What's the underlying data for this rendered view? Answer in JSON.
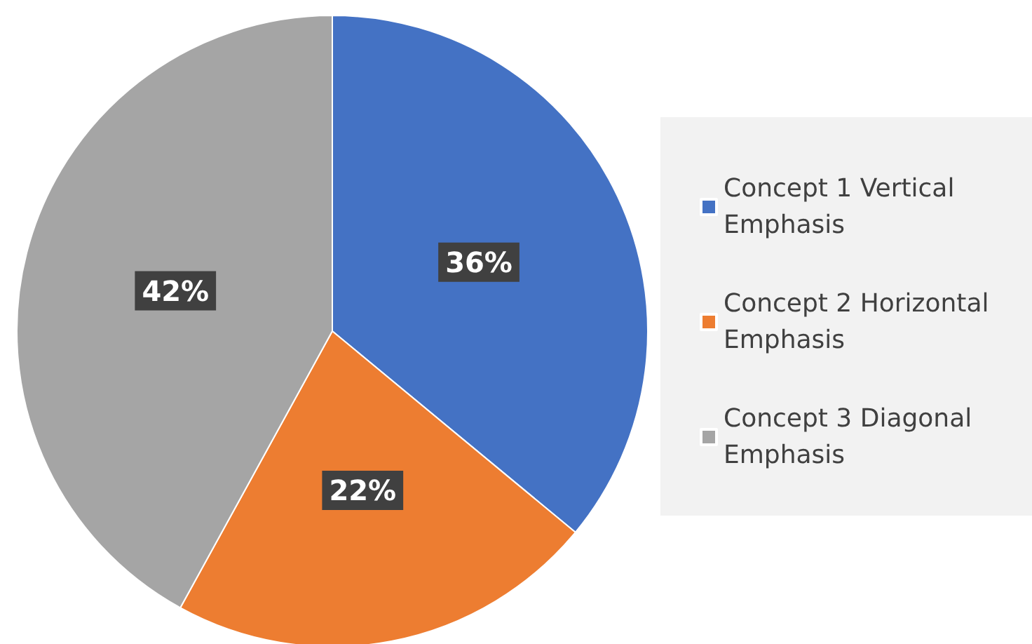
{
  "chart_data": {
    "type": "pie",
    "categories": [
      "Concept 1 Vertical Emphasis",
      "Concept 2 Horizontal Emphasis",
      "Concept 3 Diagonal Emphasis"
    ],
    "values": [
      36,
      22,
      42
    ],
    "colors": [
      "#4472c4",
      "#ed7d31",
      "#a5a5a5"
    ],
    "value_labels": [
      "36%",
      "22%",
      "42%"
    ],
    "legend": "right"
  }
}
